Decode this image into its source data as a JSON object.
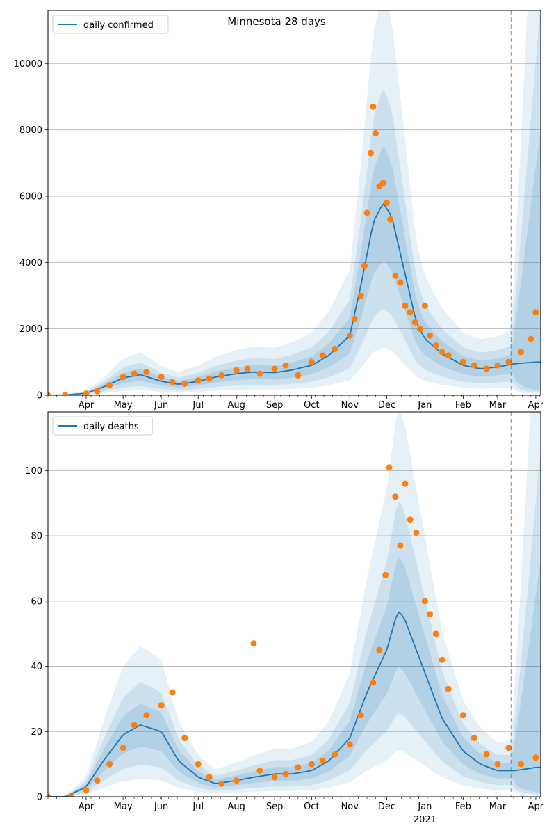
{
  "chart_data": [
    {
      "type": "line",
      "title": "Minnesota 28 days",
      "xlabel": "",
      "ylabel": "",
      "ylim": [
        0,
        11600
      ],
      "yticks": [
        0,
        2000,
        4000,
        6000,
        8000,
        10000
      ],
      "grid": "horizontal",
      "legend_position": "top-left",
      "x_ticks": [
        "Apr",
        "May",
        "Jun",
        "Jul",
        "Aug",
        "Sep",
        "Oct",
        "Nov",
        "Dec",
        "Jan",
        "Feb",
        "Mar",
        "Apr"
      ],
      "x_year_label": "2021",
      "vline_at": "Mar 12",
      "series": [
        {
          "name": "daily confirmed",
          "kind": "fitted-line-with-bands",
          "color": "#1f77b4",
          "x": [
            "Mar 1",
            "Mar 15",
            "Apr 1",
            "Apr 15",
            "May 1",
            "May 15",
            "Jun 1",
            "Jun 15",
            "Jul 1",
            "Jul 15",
            "Aug 1",
            "Aug 15",
            "Sep 1",
            "Sep 15",
            "Oct 1",
            "Oct 15",
            "Nov 1",
            "Nov 10",
            "Nov 20",
            "Nov 28",
            "Dec 5",
            "Dec 15",
            "Dec 25",
            "Jan 1",
            "Jan 15",
            "Feb 1",
            "Feb 15",
            "Mar 1",
            "Mar 15",
            "Apr 1"
          ],
          "values": [
            0,
            10,
            60,
            250,
            520,
            620,
            420,
            330,
            420,
            550,
            650,
            700,
            680,
            760,
            900,
            1200,
            1800,
            3300,
            5200,
            5800,
            5400,
            3800,
            2200,
            1700,
            1250,
            900,
            800,
            850,
            950,
            1000
          ]
        },
        {
          "name": "reported daily confirmed",
          "kind": "points",
          "color": "#ff7f0e",
          "x": [
            "Mar 1",
            "Mar 15",
            "Apr 1",
            "Apr 10",
            "Apr 20",
            "May 1",
            "May 10",
            "May 20",
            "Jun 1",
            "Jun 10",
            "Jun 20",
            "Jul 1",
            "Jul 10",
            "Jul 20",
            "Aug 1",
            "Aug 10",
            "Aug 20",
            "Sep 1",
            "Sep 10",
            "Sep 20",
            "Oct 1",
            "Oct 10",
            "Oct 20",
            "Nov 1",
            "Nov 5",
            "Nov 10",
            "Nov 13",
            "Nov 15",
            "Nov 18",
            "Nov 20",
            "Nov 22",
            "Nov 25",
            "Nov 28",
            "Dec 1",
            "Dec 4",
            "Dec 8",
            "Dec 12",
            "Dec 16",
            "Dec 20",
            "Dec 24",
            "Dec 28",
            "Jan 1",
            "Jan 5",
            "Jan 10",
            "Jan 15",
            "Jan 20",
            "Feb 1",
            "Feb 10",
            "Feb 20",
            "Mar 1",
            "Mar 10",
            "Mar 20",
            "Mar 28",
            "Apr 1"
          ],
          "values": [
            0,
            10,
            50,
            120,
            300,
            550,
            650,
            700,
            550,
            400,
            350,
            450,
            500,
            600,
            750,
            800,
            650,
            800,
            900,
            600,
            1000,
            1200,
            1400,
            1800,
            2300,
            3000,
            3900,
            5500,
            7300,
            8700,
            7900,
            6300,
            6400,
            5800,
            5300,
            3600,
            3400,
            2700,
            2500,
            2200,
            2000,
            2700,
            1800,
            1500,
            1300,
            1200,
            1000,
            900,
            800,
            900,
            1000,
            1300,
            1700,
            2500
          ]
        }
      ]
    },
    {
      "type": "line",
      "title": "",
      "xlabel": "",
      "ylabel": "",
      "ylim": [
        0,
        118
      ],
      "yticks": [
        0,
        20,
        40,
        60,
        80,
        100
      ],
      "grid": "horizontal",
      "legend_position": "top-left",
      "x_ticks": [
        "Apr",
        "May",
        "Jun",
        "Jul",
        "Aug",
        "Sep",
        "Oct",
        "Nov",
        "Dec",
        "Jan",
        "Feb",
        "Mar",
        "Apr"
      ],
      "x_year_label": "2021",
      "vline_at": "Mar 12",
      "series": [
        {
          "name": "daily deaths",
          "kind": "fitted-line-with-bands",
          "color": "#1f77b4",
          "x": [
            "Mar 1",
            "Mar 15",
            "Apr 1",
            "Apr 15",
            "May 1",
            "May 15",
            "Jun 1",
            "Jun 15",
            "Jul 1",
            "Jul 15",
            "Aug 1",
            "Aug 15",
            "Sep 1",
            "Sep 15",
            "Oct 1",
            "Oct 15",
            "Nov 1",
            "Nov 15",
            "Dec 1",
            "Dec 10",
            "Dec 15",
            "Jan 1",
            "Jan 15",
            "Feb 1",
            "Feb 15",
            "Mar 1",
            "Mar 15",
            "Apr 1"
          ],
          "values": [
            0,
            0,
            3,
            11,
            19,
            22,
            20,
            11,
            6,
            4,
            5,
            6,
            7,
            7,
            8,
            11,
            18,
            32,
            45,
            57,
            55,
            38,
            24,
            14,
            10,
            8,
            8,
            9
          ]
        },
        {
          "name": "reported daily deaths",
          "kind": "points",
          "color": "#ff7f0e",
          "x": [
            "Mar 1",
            "Mar 20",
            "Apr 1",
            "Apr 10",
            "Apr 20",
            "May 1",
            "May 10",
            "May 20",
            "Jun 1",
            "Jun 10",
            "Jun 20",
            "Jul 1",
            "Jul 10",
            "Jul 20",
            "Aug 1",
            "Aug 15",
            "Aug 20",
            "Sep 1",
            "Sep 10",
            "Sep 20",
            "Oct 1",
            "Oct 10",
            "Oct 20",
            "Nov 1",
            "Nov 10",
            "Nov 20",
            "Nov 25",
            "Nov 30",
            "Dec 3",
            "Dec 8",
            "Dec 12",
            "Dec 16",
            "Dec 20",
            "Dec 25",
            "Jan 1",
            "Jan 5",
            "Jan 10",
            "Jan 15",
            "Jan 20",
            "Feb 1",
            "Feb 10",
            "Feb 20",
            "Mar 1",
            "Mar 10",
            "Mar 20",
            "Apr 1"
          ],
          "values": [
            0,
            0,
            2,
            5,
            10,
            15,
            22,
            25,
            28,
            32,
            18,
            10,
            6,
            4,
            5,
            47,
            8,
            6,
            7,
            9,
            10,
            11,
            13,
            16,
            25,
            35,
            45,
            68,
            101,
            92,
            77,
            96,
            85,
            81,
            60,
            56,
            50,
            42,
            33,
            25,
            18,
            13,
            10,
            15,
            10,
            12
          ]
        }
      ]
    }
  ]
}
